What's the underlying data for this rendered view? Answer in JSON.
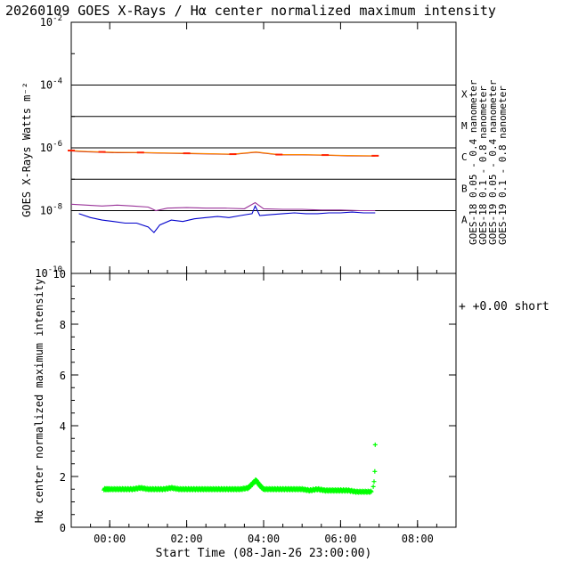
{
  "title": "20260109 GOES X-Rays / Hα center normalized maximum intensity",
  "colors": {
    "goes18_short": "#0000cc",
    "goes18_long": "#aa0022",
    "goes19_short": "#993399",
    "goes19_long": "#ff8800",
    "goes19_long_dots": "#ff2200",
    "halpha": "#00ff00",
    "axis": "#000000",
    "background": "#ffffff"
  },
  "chart_data": [
    {
      "type": "line",
      "title": "20260109 GOES X-Rays / Hα center normalized maximum intensity",
      "ylabel": "GOES X-Rays Watts m⁻²",
      "yscale": "log",
      "ylim": [
        1e-10,
        0.01
      ],
      "y_ticks": [
        {
          "exp": "-2",
          "value": 0.01
        },
        {
          "exp": "-4",
          "value": 0.0001
        },
        {
          "exp": "-6",
          "value": 1e-06
        },
        {
          "exp": "-8",
          "value": 1e-08
        },
        {
          "exp": "-10",
          "value": 1e-10
        }
      ],
      "flare_classes": [
        {
          "label": "X",
          "threshold": 0.0001
        },
        {
          "label": "M",
          "threshold": 1e-05
        },
        {
          "label": "C",
          "threshold": 1e-06
        },
        {
          "label": "B",
          "threshold": 1e-07
        },
        {
          "label": "A",
          "threshold": 1e-08
        }
      ],
      "xlim_hours": [
        -1.0,
        9.0
      ],
      "x_ticks": [
        {
          "hours": 0,
          "label": "00:00"
        },
        {
          "hours": 2,
          "label": "02:00"
        },
        {
          "hours": 4,
          "label": "04:00"
        },
        {
          "hours": 6,
          "label": "06:00"
        },
        {
          "hours": 8,
          "label": "08:00"
        }
      ],
      "series": [
        {
          "name": "GOES-18 0.05 - 0.4 nanometer",
          "color_key": "goes18_short",
          "x_hours": [
            -0.8,
            -0.5,
            -0.2,
            0.1,
            0.4,
            0.7,
            1.0,
            1.15,
            1.3,
            1.6,
            1.9,
            2.2,
            2.5,
            2.8,
            3.1,
            3.4,
            3.7,
            3.78,
            3.9,
            4.2,
            4.5,
            4.8,
            5.1,
            5.4,
            5.7,
            6.0,
            6.3,
            6.6,
            6.9
          ],
          "values": [
            8e-09,
            6e-09,
            5e-09,
            4.5e-09,
            4e-09,
            4e-09,
            3e-09,
            2e-09,
            3.5e-09,
            5e-09,
            4.5e-09,
            5.5e-09,
            6e-09,
            6.5e-09,
            6e-09,
            7e-09,
            8e-09,
            1.4e-08,
            7e-09,
            7.5e-09,
            8e-09,
            8.5e-09,
            8e-09,
            8e-09,
            8.5e-09,
            8.5e-09,
            9e-09,
            8.5e-09,
            8.5e-09
          ]
        },
        {
          "name": "GOES-18 0.1 - 0.8 nanometer",
          "color_key": "goes18_long",
          "x_hours": [
            -1.0,
            -0.6,
            -0.2,
            0.2,
            0.8,
            1.4,
            2.0,
            2.6,
            3.2,
            3.8,
            4.4,
            5.0,
            5.6,
            6.2,
            6.9
          ],
          "values": [
            8e-07,
            7.5e-07,
            7.2e-07,
            7e-07,
            7e-07,
            6.8e-07,
            6.6e-07,
            6.4e-07,
            6.2e-07,
            7.2e-07,
            6e-07,
            6e-07,
            5.8e-07,
            5.6e-07,
            5.5e-07
          ]
        },
        {
          "name": "GOES-19 0.05 - 0.4 nanometer",
          "color_key": "goes19_short",
          "x_hours": [
            -1.0,
            -0.6,
            -0.2,
            0.2,
            0.6,
            1.0,
            1.2,
            1.5,
            2.0,
            2.5,
            3.0,
            3.5,
            3.78,
            4.0,
            4.5,
            5.0,
            5.5,
            6.0,
            6.5,
            6.9
          ],
          "values": [
            1.6e-08,
            1.5e-08,
            1.4e-08,
            1.5e-08,
            1.4e-08,
            1.3e-08,
            1e-08,
            1.2e-08,
            1.25e-08,
            1.2e-08,
            1.2e-08,
            1.15e-08,
            1.8e-08,
            1.15e-08,
            1.1e-08,
            1.1e-08,
            1.05e-08,
            1.05e-08,
            1e-08,
            1e-08
          ]
        },
        {
          "name": "GOES-19 0.1 - 0.8 nanometer",
          "color_key": "goes19_long",
          "x_hours": [
            -1.0,
            -0.6,
            -0.2,
            0.2,
            0.8,
            1.4,
            2.0,
            2.6,
            3.2,
            3.8,
            4.4,
            5.0,
            5.6,
            6.2,
            6.9
          ],
          "values": [
            8.2e-07,
            7.7e-07,
            7.4e-07,
            7.2e-07,
            7.1e-07,
            6.9e-07,
            6.7e-07,
            6.5e-07,
            6.3e-07,
            7.4e-07,
            6.1e-07,
            6.1e-07,
            5.9e-07,
            5.7e-07,
            5.6e-07
          ]
        }
      ],
      "legend_rotated": [
        {
          "text": "GOES-18 0.05 - 0.4 nanometer",
          "color_key": "goes18_short"
        },
        {
          "text": "GOES-18 0.1 - 0.8 nanometer",
          "color_key": "goes18_long"
        },
        {
          "text": "GOES-19 0.05 - 0.4 nanometer",
          "color_key": "goes19_short"
        },
        {
          "text": "GOES-19 0.1 - 0.8 nanometer",
          "color_key": "goes19_long"
        }
      ]
    },
    {
      "type": "scatter",
      "ylabel": "Hα center normalized maximum intensity",
      "xlabel": "Start Time (08-Jan-26 23:00:00)",
      "ylim": [
        0,
        10
      ],
      "y_ticks": [
        0,
        2,
        4,
        6,
        8,
        10
      ],
      "xlim_hours": [
        -1.0,
        9.0
      ],
      "x_ticks": [
        {
          "hours": 0,
          "label": "00:00"
        },
        {
          "hours": 2,
          "label": "02:00"
        },
        {
          "hours": 4,
          "label": "04:00"
        },
        {
          "hours": 6,
          "label": "06:00"
        },
        {
          "hours": 8,
          "label": "08:00"
        }
      ],
      "series": [
        {
          "name": "short",
          "offset_label": "+  +0.00 short",
          "color_key": "halpha",
          "marker": "+",
          "x_hours": [
            -0.15,
            0.0,
            0.2,
            0.4,
            0.6,
            0.8,
            1.0,
            1.2,
            1.4,
            1.6,
            1.8,
            2.0,
            2.2,
            2.4,
            2.6,
            2.8,
            3.0,
            3.2,
            3.4,
            3.6,
            3.7,
            3.8,
            3.9,
            4.0,
            4.2,
            4.4,
            4.6,
            4.8,
            5.0,
            5.2,
            5.4,
            5.6,
            5.8,
            6.0,
            6.2,
            6.4,
            6.6,
            6.8,
            6.85,
            6.87,
            6.89,
            6.9
          ],
          "values": [
            1.5,
            1.5,
            1.5,
            1.5,
            1.5,
            1.55,
            1.5,
            1.5,
            1.5,
            1.55,
            1.5,
            1.5,
            1.5,
            1.5,
            1.5,
            1.5,
            1.5,
            1.5,
            1.5,
            1.55,
            1.7,
            1.85,
            1.65,
            1.5,
            1.5,
            1.5,
            1.5,
            1.5,
            1.5,
            1.45,
            1.5,
            1.45,
            1.45,
            1.45,
            1.45,
            1.4,
            1.4,
            1.4,
            1.6,
            1.8,
            2.2,
            3.25
          ]
        }
      ]
    }
  ]
}
